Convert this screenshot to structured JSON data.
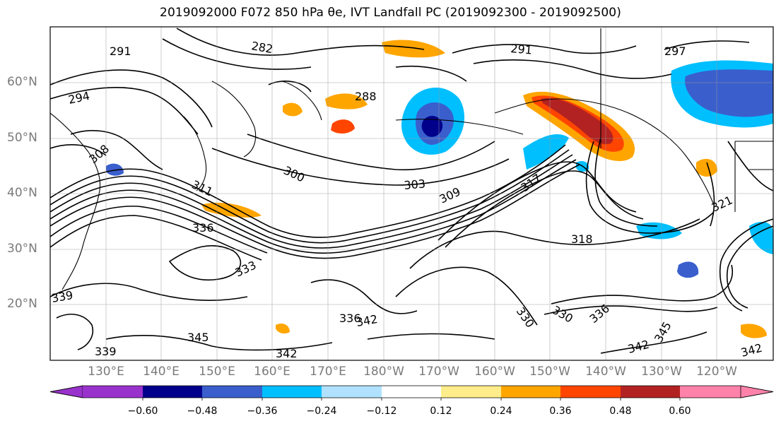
{
  "title": "2019092000 F072 850 hPa θe, IVT Landfall PC (2019092300 - 2019092500)",
  "map": {
    "lat_labels": [
      "60°N",
      "50°N",
      "40°N",
      "30°N",
      "20°N"
    ],
    "lon_labels": [
      "130°E",
      "140°E",
      "150°E",
      "160°E",
      "170°E",
      "180°W",
      "170°W",
      "160°W",
      "150°W",
      "140°W",
      "130°W",
      "120°W"
    ],
    "contour_labels": [
      "291",
      "282",
      "291",
      "297",
      "294",
      "288",
      "308",
      "300",
      "303",
      "309",
      "311",
      "317",
      "321",
      "318",
      "336",
      "333",
      "339",
      "330",
      "336",
      "342",
      "345",
      "339",
      "342",
      "342",
      "345",
      "342",
      "330",
      "336"
    ]
  },
  "colorbar": {
    "ticks": [
      "−0.60",
      "−0.48",
      "−0.36",
      "−0.24",
      "−0.12",
      "0.12",
      "0.24",
      "0.36",
      "0.48",
      "0.60"
    ],
    "colors": [
      "#9932cc",
      "#00008b",
      "#3a5fcd",
      "#00bfff",
      "#b0e2ff",
      "#ffffff",
      "#ffec8b",
      "#ffa500",
      "#ff4500",
      "#b22222",
      "#ff82ab"
    ]
  }
}
